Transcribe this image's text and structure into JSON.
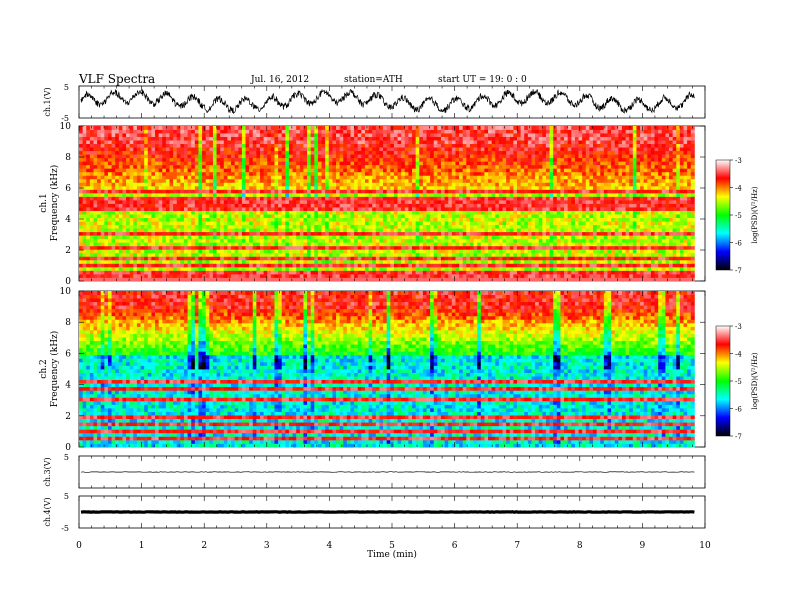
{
  "header": {
    "title": "VLF Spectra",
    "date": "Jul. 16, 2012",
    "station": "station=ATH",
    "start": "start UT = 19: 0 : 0"
  },
  "time_axis": {
    "label": "Time (min)",
    "ticks": [
      "0",
      "1",
      "2",
      "3",
      "4",
      "5",
      "6",
      "7",
      "8",
      "9",
      "10"
    ],
    "range": [
      0,
      10
    ],
    "data_end": 9.83
  },
  "panels": {
    "ch1_wave": {
      "ylabel": "ch.1(V)",
      "yticks": [
        "5",
        "-5"
      ],
      "range": [
        -5,
        5
      ]
    },
    "ch1_spec": {
      "ylabel_line1": "ch.1",
      "ylabel_line2": "Frequency (kHz)",
      "yticks": [
        "0",
        "2",
        "4",
        "6",
        "8",
        "10"
      ],
      "range": [
        0,
        10
      ]
    },
    "ch2_spec": {
      "ylabel_line1": "ch.2",
      "ylabel_line2": "Frequency (kHz)",
      "yticks": [
        "0",
        "2",
        "4",
        "6",
        "8",
        "10"
      ],
      "range": [
        0,
        10
      ]
    },
    "ch3_wave": {
      "ylabel": "ch.3(V)",
      "yticks": [
        "5",
        "-5"
      ],
      "range": [
        -5,
        5
      ]
    },
    "ch4_wave": {
      "ylabel": "ch.4(V)",
      "yticks": [
        "5",
        "-5"
      ],
      "range": [
        -5,
        5
      ]
    }
  },
  "colorbar": {
    "label": "log(PSD)(V²/Hz)",
    "ticks": [
      "-3",
      "-4",
      "-5",
      "-6",
      "-7"
    ],
    "range": [
      -7,
      -3
    ],
    "colors": [
      "#000000",
      "#0000ff",
      "#00ffff",
      "#00ff00",
      "#ffff00",
      "#ff0000",
      "#ffffff"
    ]
  },
  "chart_data": {
    "type": "heatmap",
    "x_unit": "min",
    "y_unit": "kHz",
    "value_unit": "log(PSD)(V²/Hz)",
    "series": [
      {
        "name": "ch.1",
        "dominant_low_band": [
          -5.0,
          -4.2
        ],
        "dominant_high_band": [
          -3.9,
          -3.5
        ],
        "horizontal_lines_kHz": [
          0.3,
          0.6,
          1.0,
          1.4,
          2.2,
          3.0,
          4.6,
          5.0,
          5.3,
          5.8
        ]
      },
      {
        "name": "ch.2",
        "dominant_low_band": [
          -5.8,
          -5.0
        ],
        "dominant_high_band": [
          -4.0,
          -3.6
        ],
        "horizontal_lines_kHz": [
          0.5,
          1.0,
          1.5,
          2.0,
          3.0,
          3.8,
          4.2
        ]
      }
    ],
    "waveforms": [
      {
        "name": "ch.1",
        "mean": 0.3,
        "amplitude": 3.5
      },
      {
        "name": "ch.3",
        "mean": 0.0,
        "amplitude": 0.2
      },
      {
        "name": "ch.4",
        "mean": 0.0,
        "amplitude": 0.15
      }
    ]
  }
}
